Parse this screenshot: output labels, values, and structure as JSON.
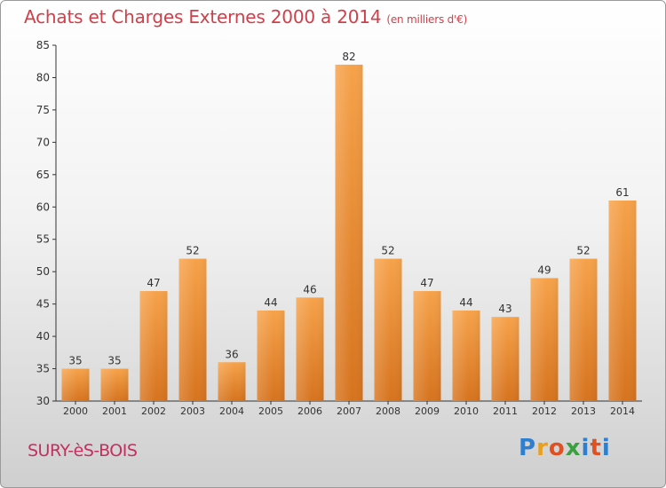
{
  "chart_data": {
    "type": "bar",
    "title": "Achats et Charges Externes 2000 à 2014",
    "subtitle": "(en milliers d'€)",
    "categories": [
      "2000",
      "2001",
      "2002",
      "2003",
      "2004",
      "2005",
      "2006",
      "2007",
      "2008",
      "2009",
      "2010",
      "2011",
      "2012",
      "2013",
      "2014"
    ],
    "values": [
      35,
      35,
      47,
      52,
      36,
      44,
      46,
      82,
      52,
      47,
      44,
      43,
      49,
      52,
      61
    ],
    "ylim": [
      30,
      85
    ],
    "yticks": [
      30,
      35,
      40,
      45,
      50,
      55,
      60,
      65,
      70,
      75,
      80,
      85
    ],
    "grid": false,
    "bar_color": "#f0963c"
  },
  "footer": {
    "place_name": "SURY-èS-BOIS",
    "logo_text": "Proxiti"
  }
}
